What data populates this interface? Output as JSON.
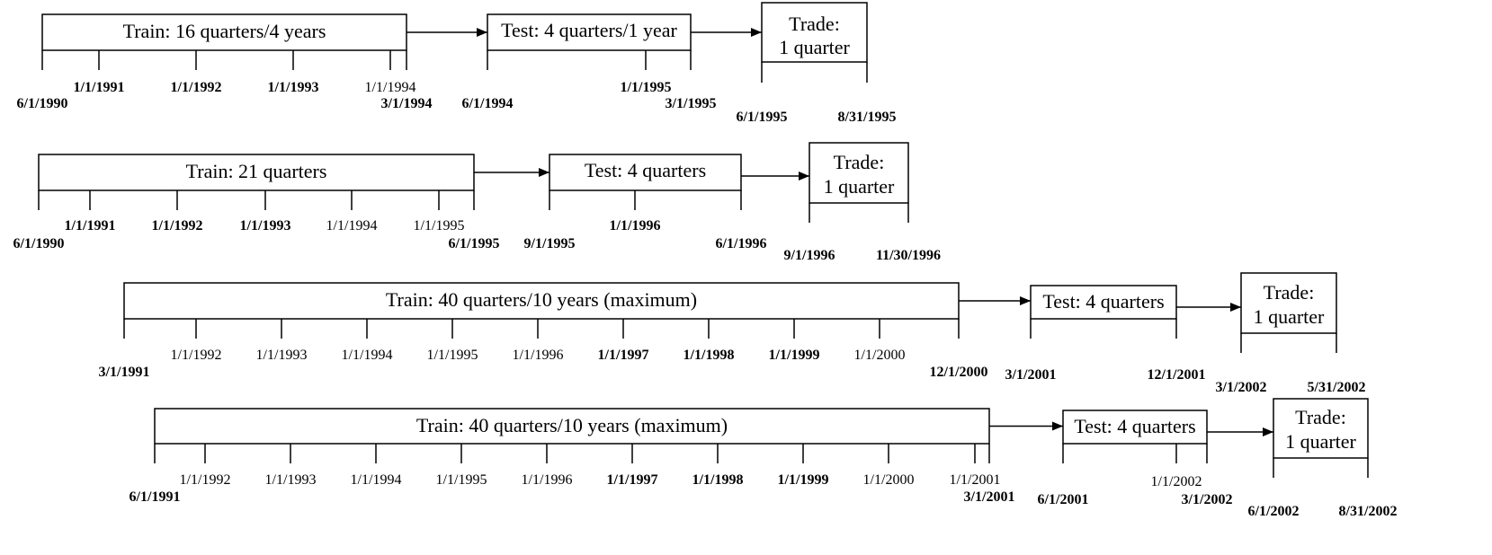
{
  "diagram": {
    "rows": [
      {
        "id": "row1",
        "train_label": "Train: 16 quarters/4 years",
        "test_label": "Test: 4 quarters/1 year",
        "trade_label_line1": "Trade:",
        "trade_label_line2": "1 quarter",
        "train_labels": [
          {
            "text": "6/1/1990",
            "bold": true
          },
          {
            "text": "1/1/1991",
            "bold": true
          },
          {
            "text": "1/1/1992",
            "bold": true
          },
          {
            "text": "1/1/1993",
            "bold": true
          },
          {
            "text": "1/1/1994",
            "bold": false
          },
          {
            "text": "3/1/1994",
            "bold": true
          }
        ],
        "test_labels": [
          {
            "text": "6/1/1994",
            "bold": true
          },
          {
            "text": "1/1/1995",
            "bold": true
          },
          {
            "text": "3/1/1995",
            "bold": true
          }
        ],
        "trade_labels": [
          {
            "text": "6/1/1995",
            "bold": true
          },
          {
            "text": "8/31/1995",
            "bold": true
          }
        ]
      },
      {
        "id": "row2",
        "train_label": "Train: 21 quarters",
        "test_label": "Test: 4 quarters",
        "trade_label_line1": "Trade:",
        "trade_label_line2": "1 quarter",
        "train_labels": [
          {
            "text": "6/1/1990",
            "bold": true
          },
          {
            "text": "1/1/1991",
            "bold": true
          },
          {
            "text": "1/1/1992",
            "bold": true
          },
          {
            "text": "1/1/1993",
            "bold": true
          },
          {
            "text": "1/1/1994",
            "bold": false
          },
          {
            "text": "1/1/1995",
            "bold": false
          },
          {
            "text": "6/1/1995",
            "bold": true
          }
        ],
        "test_labels": [
          {
            "text": "9/1/1995",
            "bold": true
          },
          {
            "text": "1/1/1996",
            "bold": true
          },
          {
            "text": "6/1/1996",
            "bold": true
          }
        ],
        "trade_labels": [
          {
            "text": "9/1/1996",
            "bold": true
          },
          {
            "text": "11/30/1996",
            "bold": true
          }
        ]
      },
      {
        "id": "row3",
        "train_label": "Train: 40 quarters/10 years (maximum)",
        "test_label": "Test: 4 quarters",
        "trade_label_line1": "Trade:",
        "trade_label_line2": "1 quarter",
        "train_labels": [
          {
            "text": "3/1/1991",
            "bold": true
          },
          {
            "text": "1/1/1992",
            "bold": false
          },
          {
            "text": "1/1/1993",
            "bold": false
          },
          {
            "text": "1/1/1994",
            "bold": false
          },
          {
            "text": "1/1/1995",
            "bold": false
          },
          {
            "text": "1/1/1996",
            "bold": false
          },
          {
            "text": "1/1/1997",
            "bold": true
          },
          {
            "text": "1/1/1998",
            "bold": true
          },
          {
            "text": "1/1/1999",
            "bold": true
          },
          {
            "text": "1/1/2000",
            "bold": false
          },
          {
            "text": "12/1/2000",
            "bold": true
          }
        ],
        "test_labels": [
          {
            "text": "3/1/2001",
            "bold": true
          },
          {
            "text": "12/1/2001",
            "bold": true
          }
        ],
        "trade_labels": [
          {
            "text": "3/1/2002",
            "bold": true
          },
          {
            "text": "5/31/2002",
            "bold": true
          }
        ]
      },
      {
        "id": "row4",
        "train_label": "Train: 40 quarters/10 years (maximum)",
        "test_label": "Test: 4 quarters",
        "trade_label_line1": "Trade:",
        "trade_label_line2": "1 quarter",
        "train_labels": [
          {
            "text": "6/1/1991",
            "bold": true
          },
          {
            "text": "1/1/1992",
            "bold": false
          },
          {
            "text": "1/1/1993",
            "bold": false
          },
          {
            "text": "1/1/1994",
            "bold": false
          },
          {
            "text": "1/1/1995",
            "bold": false
          },
          {
            "text": "1/1/1996",
            "bold": false
          },
          {
            "text": "1/1/1997",
            "bold": true
          },
          {
            "text": "1/1/1998",
            "bold": true
          },
          {
            "text": "1/1/1999",
            "bold": true
          },
          {
            "text": "1/1/2000",
            "bold": false
          },
          {
            "text": "1/1/2001",
            "bold": false
          },
          {
            "text": "3/1/2001",
            "bold": true
          }
        ],
        "test_labels": [
          {
            "text": "6/1/2001",
            "bold": true
          },
          {
            "text": "1/1/2002",
            "bold": false
          },
          {
            "text": "3/1/2002",
            "bold": true
          }
        ],
        "trade_labels": [
          {
            "text": "6/1/2002",
            "bold": true
          },
          {
            "text": "8/31/2002",
            "bold": true
          }
        ]
      }
    ]
  }
}
